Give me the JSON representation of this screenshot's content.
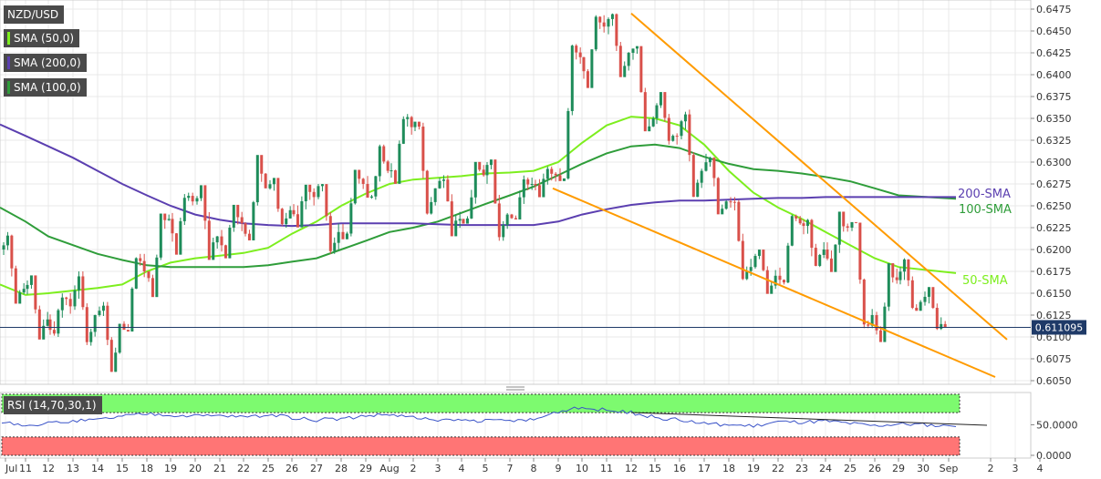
{
  "legends": [
    {
      "label": "NZD/USD",
      "color": "#ffffff"
    },
    {
      "label": "SMA (50,0)",
      "color": "#7dee1e"
    },
    {
      "label": "SMA (200,0)",
      "color": "#5b3fb0"
    },
    {
      "label": "SMA (100,0)",
      "color": "#2f9d3a"
    }
  ],
  "rsi_legend": {
    "label": "RSI (14,70,30,1)"
  },
  "price_badge": "0.611095",
  "colors": {
    "up": "#1e8c5a",
    "down": "#d9504a",
    "sma50": "#7dee1e",
    "sma100": "#2f9d3a",
    "sma200": "#5b3fb0",
    "trend": "#ff9b00",
    "rsi_line": "#3a53c8",
    "overbought": "#7dfa6f",
    "oversold": "#ff7575"
  },
  "chart_data": [
    {
      "type": "candlestick",
      "instrument": "NZD/USD",
      "x_tick_labels": [
        "Jul",
        "11",
        "12",
        "13",
        "14",
        "15",
        "18",
        "19",
        "20",
        "21",
        "22",
        "25",
        "26",
        "27",
        "28",
        "29",
        "Aug",
        "2",
        "3",
        "4",
        "5",
        "7",
        "8",
        "9",
        "10",
        "11",
        "12",
        "15",
        "16",
        "17",
        "18",
        "19",
        "22",
        "23",
        "24",
        "25",
        "26",
        "29",
        "30",
        "Sep",
        "2",
        "3",
        "4"
      ],
      "y_tick_labels": [
        "0.6050",
        "0.6075",
        "0.6100",
        "0.6125",
        "0.6150",
        "0.6175",
        "0.6200",
        "0.6225",
        "0.6250",
        "0.6275",
        "0.6300",
        "0.6325",
        "0.6350",
        "0.6375",
        "0.6400",
        "0.6425",
        "0.6450",
        "0.6475"
      ],
      "ylim": [
        0.6043,
        0.648
      ],
      "last_price": 0.611095,
      "daily_ohlc": [
        {
          "day": "Jul 8",
          "open": 0.62,
          "high": 0.622,
          "low": 0.614,
          "close": 0.6155
        },
        {
          "day": "11",
          "open": 0.6155,
          "high": 0.617,
          "low": 0.61,
          "close": 0.612
        },
        {
          "day": "12",
          "open": 0.612,
          "high": 0.615,
          "low": 0.61,
          "close": 0.6135
        },
        {
          "day": "13",
          "open": 0.6135,
          "high": 0.6175,
          "low": 0.609,
          "close": 0.6125
        },
        {
          "day": "14",
          "open": 0.6125,
          "high": 0.614,
          "low": 0.606,
          "close": 0.6115
        },
        {
          "day": "15",
          "open": 0.6115,
          "high": 0.6195,
          "low": 0.611,
          "close": 0.6175
        },
        {
          "day": "18",
          "open": 0.6175,
          "high": 0.624,
          "low": 0.615,
          "close": 0.6235
        },
        {
          "day": "19",
          "open": 0.6235,
          "high": 0.6265,
          "low": 0.62,
          "close": 0.6255
        },
        {
          "day": "20",
          "open": 0.6255,
          "high": 0.627,
          "low": 0.619,
          "close": 0.6215
        },
        {
          "day": "21",
          "open": 0.6215,
          "high": 0.625,
          "low": 0.619,
          "close": 0.623
        },
        {
          "day": "22",
          "open": 0.623,
          "high": 0.6305,
          "low": 0.6215,
          "close": 0.627
        },
        {
          "day": "25",
          "open": 0.627,
          "high": 0.628,
          "low": 0.6225,
          "close": 0.6245
        },
        {
          "day": "26",
          "open": 0.6245,
          "high": 0.627,
          "low": 0.623,
          "close": 0.626
        },
        {
          "day": "27",
          "open": 0.626,
          "high": 0.6275,
          "low": 0.6195,
          "close": 0.622
        },
        {
          "day": "28",
          "open": 0.622,
          "high": 0.629,
          "low": 0.6215,
          "close": 0.6275
        },
        {
          "day": "29",
          "open": 0.6275,
          "high": 0.632,
          "low": 0.6255,
          "close": 0.629
        },
        {
          "day": "Aug 1",
          "open": 0.629,
          "high": 0.6355,
          "low": 0.628,
          "close": 0.634
        },
        {
          "day": "2",
          "open": 0.634,
          "high": 0.6345,
          "low": 0.624,
          "close": 0.627
        },
        {
          "day": "3",
          "open": 0.627,
          "high": 0.6285,
          "low": 0.622,
          "close": 0.6235
        },
        {
          "day": "4",
          "open": 0.6235,
          "high": 0.63,
          "low": 0.623,
          "close": 0.6285
        },
        {
          "day": "5",
          "open": 0.6285,
          "high": 0.63,
          "low": 0.621,
          "close": 0.624
        },
        {
          "day": "8",
          "open": 0.624,
          "high": 0.6285,
          "low": 0.6235,
          "close": 0.6275
        },
        {
          "day": "9",
          "open": 0.6275,
          "high": 0.6295,
          "low": 0.6265,
          "close": 0.6285
        },
        {
          "day": "10",
          "open": 0.6285,
          "high": 0.6435,
          "low": 0.628,
          "close": 0.642
        },
        {
          "day": "11",
          "open": 0.642,
          "high": 0.6468,
          "low": 0.639,
          "close": 0.6455
        },
        {
          "day": "12",
          "open": 0.6455,
          "high": 0.647,
          "low": 0.64,
          "close": 0.6425
        },
        {
          "day": "15",
          "open": 0.6425,
          "high": 0.643,
          "low": 0.634,
          "close": 0.635
        },
        {
          "day": "16",
          "open": 0.635,
          "high": 0.6375,
          "low": 0.632,
          "close": 0.633
        },
        {
          "day": "17",
          "open": 0.633,
          "high": 0.636,
          "low": 0.626,
          "close": 0.629
        },
        {
          "day": "18",
          "open": 0.629,
          "high": 0.631,
          "low": 0.6245,
          "close": 0.6255
        },
        {
          "day": "19",
          "open": 0.6255,
          "high": 0.626,
          "low": 0.6165,
          "close": 0.618
        },
        {
          "day": "22",
          "open": 0.618,
          "high": 0.6195,
          "low": 0.6155,
          "close": 0.617
        },
        {
          "day": "23",
          "open": 0.617,
          "high": 0.624,
          "low": 0.616,
          "close": 0.623
        },
        {
          "day": "24",
          "open": 0.623,
          "high": 0.6235,
          "low": 0.618,
          "close": 0.62
        },
        {
          "day": "25",
          "open": 0.62,
          "high": 0.624,
          "low": 0.618,
          "close": 0.6225
        },
        {
          "day": "26",
          "open": 0.6225,
          "high": 0.623,
          "low": 0.611,
          "close": 0.6125
        },
        {
          "day": "29",
          "open": 0.6125,
          "high": 0.618,
          "low": 0.61,
          "close": 0.6165
        },
        {
          "day": "30",
          "open": 0.6165,
          "high": 0.619,
          "low": 0.613,
          "close": 0.614
        },
        {
          "day": "31",
          "open": 0.614,
          "high": 0.6155,
          "low": 0.6108,
          "close": 0.6111
        }
      ],
      "sma": [
        {
          "name": "SMA (50,0)",
          "chart_label": "50-SMA",
          "values": [
            0.616,
            0.6148,
            0.615,
            0.6153,
            0.6156,
            0.616,
            0.6175,
            0.6185,
            0.619,
            0.6193,
            0.6196,
            0.6202,
            0.6218,
            0.6232,
            0.625,
            0.6264,
            0.6275,
            0.628,
            0.6282,
            0.6284,
            0.6287,
            0.6288,
            0.629,
            0.63,
            0.6322,
            0.6342,
            0.6352,
            0.635,
            0.6342,
            0.632,
            0.629,
            0.6265,
            0.6248,
            0.6235,
            0.622,
            0.6205,
            0.619,
            0.618,
            0.6173
          ]
        },
        {
          "name": "SMA (100,0)",
          "chart_label": "100-SMA",
          "values": [
            0.6248,
            0.6232,
            0.6215,
            0.6205,
            0.6195,
            0.6188,
            0.6182,
            0.618,
            0.618,
            0.618,
            0.618,
            0.6182,
            0.6186,
            0.619,
            0.62,
            0.621,
            0.622,
            0.6225,
            0.6232,
            0.6242,
            0.6252,
            0.6262,
            0.6272,
            0.6285,
            0.6298,
            0.631,
            0.6318,
            0.632,
            0.6316,
            0.6306,
            0.6298,
            0.6292,
            0.629,
            0.6287,
            0.6283,
            0.6278,
            0.627,
            0.6262,
            0.6258
          ]
        },
        {
          "name": "SMA (200,0)",
          "chart_label": "200-SMA",
          "values": [
            0.6343,
            0.633,
            0.6318,
            0.6305,
            0.629,
            0.6275,
            0.6262,
            0.625,
            0.624,
            0.6234,
            0.623,
            0.6228,
            0.6227,
            0.6228,
            0.623,
            0.623,
            0.623,
            0.623,
            0.6229,
            0.6228,
            0.6228,
            0.6228,
            0.6228,
            0.6232,
            0.624,
            0.6246,
            0.6251,
            0.6254,
            0.6256,
            0.6256,
            0.6257,
            0.6258,
            0.6259,
            0.6259,
            0.626,
            0.626,
            0.626,
            0.626,
            0.626
          ]
        }
      ],
      "trendlines": [
        {
          "from": {
            "day": "Aug 12",
            "price": 0.647
          },
          "to": {
            "day": "Sep 3",
            "price": 0.6097
          }
        },
        {
          "from": {
            "day": "Aug 8",
            "price": 0.627
          },
          "to": {
            "day": "Sep 3",
            "price": 0.605
          }
        }
      ]
    },
    {
      "type": "line",
      "title": "RSI (14,70,30,1)",
      "y_tick_labels": [
        "0.0000",
        "50.0000"
      ],
      "ylim": [
        0,
        100
      ],
      "bands": {
        "overbought": [
          70,
          100
        ],
        "oversold": [
          0,
          30
        ]
      },
      "values": [
        55,
        50,
        52,
        56,
        58,
        64,
        68,
        66,
        64,
        65,
        63,
        66,
        62,
        58,
        60,
        65,
        67,
        62,
        56,
        58,
        56,
        57,
        58,
        72,
        78,
        74,
        70,
        62,
        58,
        52,
        50,
        48,
        55,
        54,
        56,
        52,
        48,
        51,
        50,
        47
      ]
    }
  ]
}
